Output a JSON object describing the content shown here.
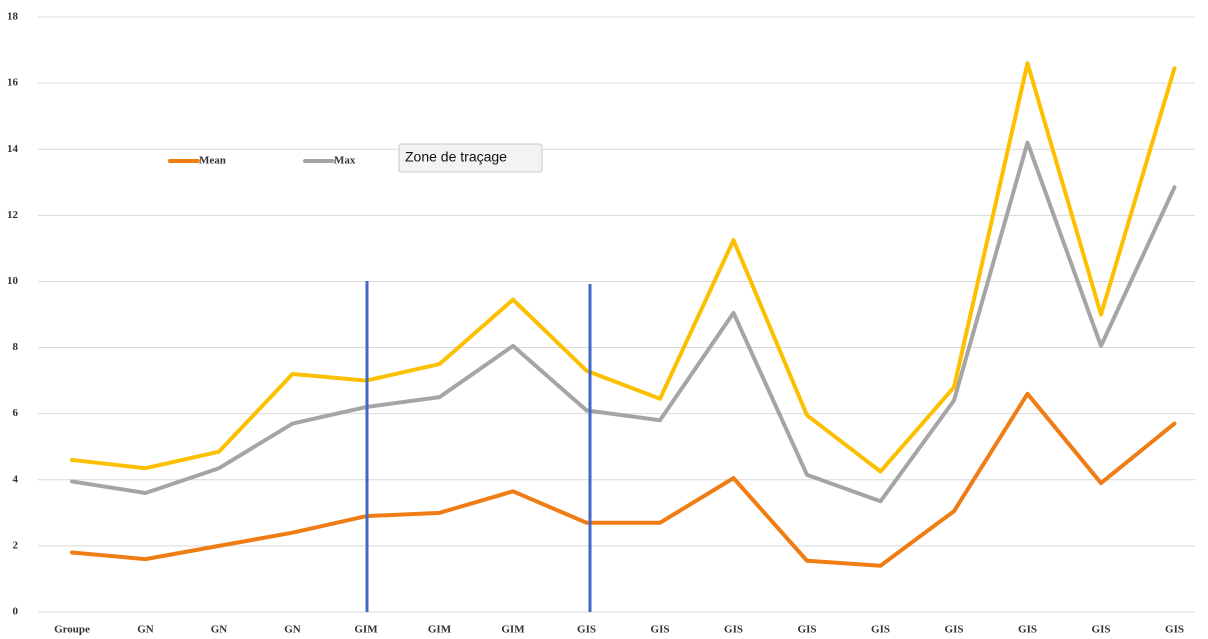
{
  "chart_data": {
    "type": "line",
    "categories": [
      "Groupe",
      "GN",
      "GN",
      "GN",
      "GIM",
      "GIM",
      "GIM",
      "GIS",
      "GIS",
      "GIS",
      "GIS",
      "GIS",
      "GIS",
      "GIS",
      "GIS",
      "GIS"
    ],
    "series": [
      {
        "name": "Mean",
        "color": "#f07c14",
        "values": [
          1.8,
          1.6,
          2.0,
          2.4,
          2.9,
          3.0,
          3.65,
          2.7,
          2.7,
          4.05,
          1.55,
          1.4,
          3.05,
          6.6,
          3.9,
          5.7
        ]
      },
      {
        "name": "Max",
        "color": "#a5a5a5",
        "values": [
          3.95,
          3.6,
          4.35,
          5.7,
          6.2,
          6.5,
          8.05,
          6.1,
          5.8,
          9.05,
          4.15,
          3.35,
          6.4,
          14.2,
          8.05,
          12.85
        ]
      },
      {
        "color": "#fcc000",
        "values": [
          4.6,
          4.35,
          4.85,
          7.2,
          7.0,
          7.5,
          9.45,
          7.3,
          6.45,
          11.25,
          5.95,
          4.25,
          6.8,
          16.6,
          9.0,
          16.45
        ]
      }
    ],
    "ylim": [
      0,
      18
    ],
    "yticks": [
      0,
      2,
      4,
      6,
      8,
      10,
      12,
      14,
      16,
      18
    ],
    "grid": true,
    "tooltip": "Zone de traçage"
  }
}
